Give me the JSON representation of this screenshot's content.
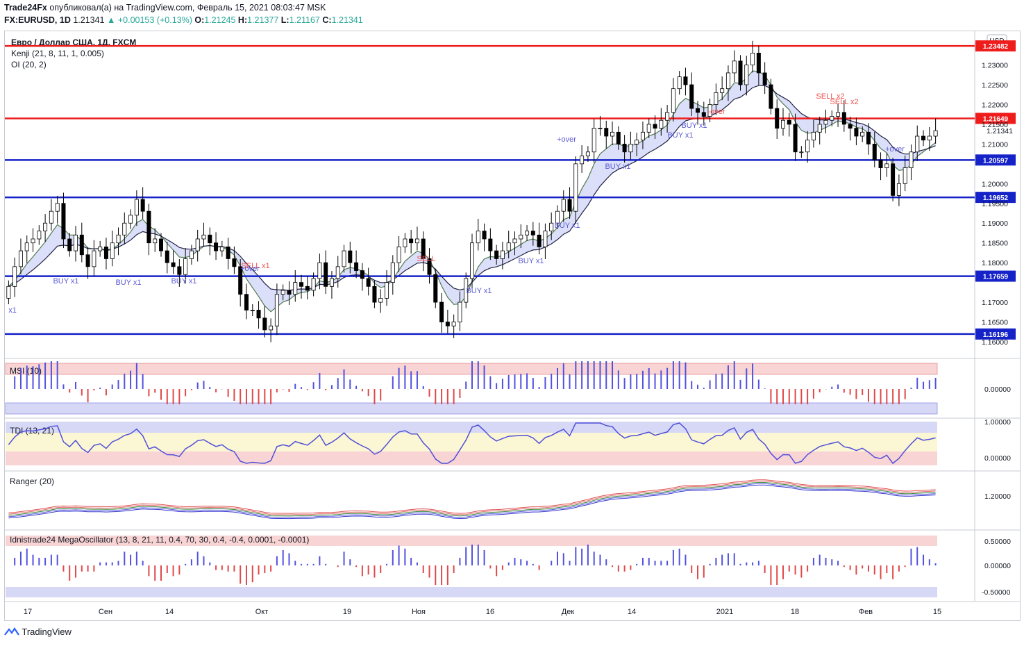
{
  "header": {
    "author": "Trade24Fx",
    "published_text": "опубликовал(а) на TradingView.com, Февраль 15, 2021 08:03:47 MSK",
    "symbol": "FX:EURUSD, 1D",
    "last": "1.21341",
    "change": "▲ +0.00153 (+0.13%)",
    "ohlc": {
      "o_label": "O:",
      "o": "1.21245",
      "h_label": "H:",
      "h": "1.21377",
      "l_label": "L:",
      "l": "1.21167",
      "c_label": "C:",
      "c": "1.21341"
    }
  },
  "main_pane": {
    "title": "Евро / Доллар США, 1Д, FXCM",
    "indicator1": "Kenji (21, 8, 11, 1, 0.005)",
    "indicator2": "OI (20, 2)",
    "currency_badge": "USD",
    "price_ticks": [
      "1.23000",
      "1.22500",
      "1.22000",
      "1.21500",
      "1.21000",
      "1.20000",
      "1.19500",
      "1.19000",
      "1.18500",
      "1.18000",
      "1.17000",
      "1.16500",
      "1.16000"
    ],
    "levels": [
      {
        "label": "1.23482",
        "price": 1.23482,
        "color": "#ef1c1c"
      },
      {
        "label": "1.21649",
        "price": 1.21649,
        "color": "#ef1c1c"
      },
      {
        "label": "1.20597",
        "price": 1.20597,
        "color": "#1522c8"
      },
      {
        "label": "1.19652",
        "price": 1.19652,
        "color": "#1522c8"
      },
      {
        "label": "1.17659",
        "price": 1.17659,
        "color": "#1522c8"
      },
      {
        "label": "1.16196",
        "price": 1.16196,
        "color": "#1522c8"
      }
    ],
    "last_price_label": "1.21341",
    "signals": [
      "BUY x1",
      "BUY x1",
      "BUY x1",
      "BUY x1",
      "BUY x1",
      "BUY x1",
      "BUY x1",
      "BUY x1",
      "BUY x1",
      "SELL",
      "SELL x2",
      "SELL x2",
      "SELL x1",
      "+over",
      "+over",
      "+over",
      "-over",
      "x1"
    ]
  },
  "panes": {
    "msi": {
      "label": "MSI (10)",
      "tick": "0.00000"
    },
    "tdi": {
      "label": "TDI (13, 21)",
      "ticks": [
        "1.00000",
        "0.00000"
      ]
    },
    "ranger": {
      "label": "Ranger (20)",
      "tick": "1.20000"
    },
    "mega": {
      "label": "Idnistrade24 MegaOscillator (13, 8, 21, 11, 0.4, 70, 30, 0.4, -0.4, 0.0001, -0.0001)",
      "ticks": [
        "0.50000",
        "0.00000",
        "-0.50000"
      ]
    }
  },
  "time_axis": [
    "17",
    "Сен",
    "14",
    "Окт",
    "19",
    "Ноя",
    "16",
    "Дек",
    "14",
    "2021",
    "18",
    "Фев",
    "15"
  ],
  "footer": {
    "brand": "TradingView"
  },
  "colors": {
    "bull_candle": "#ffffff",
    "bear_candle": "#000000",
    "buy": "#5b5bd6",
    "sell": "#ef5350",
    "ma_fill_up": "#c8f0c8",
    "ma_fill_down": "#d0d4f7",
    "level_red": "#ef1c1c",
    "level_blue": "#1522c8"
  },
  "chart_data": {
    "type": "candlestick",
    "symbol": "FX:EURUSD",
    "timeframe": "1D",
    "ylim": [
      1.16,
      1.238
    ],
    "close": [
      1.174,
      1.179,
      1.183,
      1.185,
      1.186,
      1.188,
      1.19,
      1.193,
      1.195,
      1.186,
      1.183,
      1.187,
      1.182,
      1.179,
      1.183,
      1.184,
      1.181,
      1.185,
      1.187,
      1.19,
      1.192,
      1.196,
      1.193,
      1.185,
      1.186,
      1.183,
      1.18,
      1.179,
      1.177,
      1.181,
      1.183,
      1.186,
      1.187,
      1.185,
      1.183,
      1.184,
      1.181,
      1.179,
      1.172,
      1.168,
      1.168,
      1.166,
      1.163,
      1.164,
      1.172,
      1.173,
      1.172,
      1.175,
      1.174,
      1.173,
      1.176,
      1.18,
      1.174,
      1.176,
      1.179,
      1.183,
      1.18,
      1.178,
      1.176,
      1.174,
      1.17,
      1.171,
      1.175,
      1.18,
      1.184,
      1.186,
      1.185,
      1.186,
      1.181,
      1.177,
      1.17,
      1.165,
      1.164,
      1.165,
      1.17,
      1.176,
      1.185,
      1.188,
      1.186,
      1.183,
      1.181,
      1.183,
      1.185,
      1.186,
      1.187,
      1.188,
      1.187,
      1.184,
      1.188,
      1.19,
      1.193,
      1.196,
      1.193,
      1.205,
      1.207,
      1.208,
      1.214,
      1.214,
      1.212,
      1.213,
      1.21,
      1.208,
      1.21,
      1.211,
      1.213,
      1.215,
      1.214,
      1.216,
      1.218,
      1.224,
      1.227,
      1.225,
      1.219,
      1.218,
      1.217,
      1.22,
      1.223,
      1.224,
      1.228,
      1.231,
      1.225,
      1.23,
      1.233,
      1.228,
      1.225,
      1.219,
      1.214,
      1.216,
      1.215,
      1.208,
      1.208,
      1.211,
      1.213,
      1.215,
      1.216,
      1.217,
      1.218,
      1.215,
      1.214,
      1.212,
      1.213,
      1.21,
      1.206,
      1.204,
      1.205,
      1.197,
      1.2,
      1.204,
      1.208,
      1.212,
      1.211,
      1.212,
      1.2134
    ],
    "annotations": {
      "resistance": [
        1.23482,
        1.21649
      ],
      "support": [
        1.20597,
        1.19652,
        1.17659,
        1.16196
      ]
    }
  }
}
